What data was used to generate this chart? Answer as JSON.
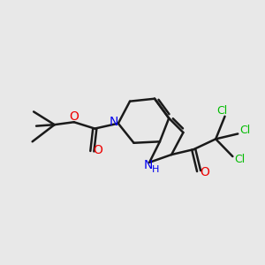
{
  "background_color": "#e8e8e8",
  "bond_color": "#1a1a1a",
  "nitrogen_color": "#0000ee",
  "oxygen_color": "#ee0000",
  "chlorine_color": "#00bb00",
  "bond_width": 1.8,
  "figsize": [
    3.0,
    3.0
  ],
  "dpi": 100,
  "xlim": [
    0,
    10
  ],
  "ylim": [
    0,
    10
  ]
}
